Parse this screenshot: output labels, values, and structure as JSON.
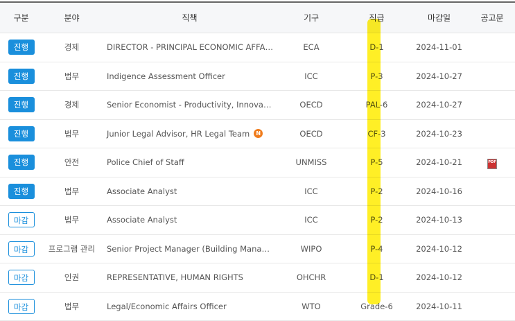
{
  "headers": [
    "구분",
    "분야",
    "직책",
    "기구",
    "직급",
    "마감일",
    "공고문"
  ],
  "rows": [
    {
      "status": "진행",
      "closed": false,
      "field": "경제",
      "title": "DIRECTOR - PRINCIPAL ECONOMIC AFFA…",
      "new": false,
      "org": "ECA",
      "grade": "D-1",
      "deadline": "2024-11-01",
      "pdf": false
    },
    {
      "status": "진행",
      "closed": false,
      "field": "법무",
      "title": "Indigence Assessment Officer",
      "new": false,
      "org": "ICC",
      "grade": "P-3",
      "deadline": "2024-10-27",
      "pdf": false
    },
    {
      "status": "진행",
      "closed": false,
      "field": "경제",
      "title": "Senior Economist - Productivity, Innova…",
      "new": true,
      "org": "OECD",
      "grade": "PAL-6",
      "deadline": "2024-10-27",
      "pdf": false
    },
    {
      "status": "진행",
      "closed": false,
      "field": "법무",
      "title": "Junior Legal Advisor, HR Legal Team",
      "new": true,
      "org": "OECD",
      "grade": "CF-3",
      "deadline": "2024-10-23",
      "pdf": false
    },
    {
      "status": "진행",
      "closed": false,
      "field": "안전",
      "title": "Police Chief of Staff",
      "new": false,
      "org": "UNMISS",
      "grade": "P-5",
      "deadline": "2024-10-21",
      "pdf": true
    },
    {
      "status": "진행",
      "closed": false,
      "field": "법무",
      "title": "Associate Analyst",
      "new": false,
      "org": "ICC",
      "grade": "P-2",
      "deadline": "2024-10-16",
      "pdf": false
    },
    {
      "status": "마감",
      "closed": true,
      "field": "법무",
      "title": "Associate Analyst",
      "new": false,
      "org": "ICC",
      "grade": "P-2",
      "deadline": "2024-10-13",
      "pdf": false
    },
    {
      "status": "마감",
      "closed": true,
      "field": "프로그램 관리",
      "title": "Senior Project Manager (Building Mana…",
      "new": false,
      "org": "WIPO",
      "grade": "P-4",
      "deadline": "2024-10-12",
      "pdf": false
    },
    {
      "status": "마감",
      "closed": true,
      "field": "인권",
      "title": "REPRESENTATIVE, HUMAN RIGHTS",
      "new": false,
      "org": "OHCHR",
      "grade": "D-1",
      "deadline": "2024-10-12",
      "pdf": false
    },
    {
      "status": "마감",
      "closed": true,
      "field": "법무",
      "title": "Legal/Economic Affairs Officer",
      "new": false,
      "org": "WTO",
      "grade": "Grade-6",
      "deadline": "2024-10-11",
      "pdf": false
    }
  ],
  "new_label": "N",
  "pdf_label": "PDF",
  "colors": {
    "accent": "#1a8fdc",
    "new": "#f07c1c",
    "highlight": "#ffec00"
  }
}
